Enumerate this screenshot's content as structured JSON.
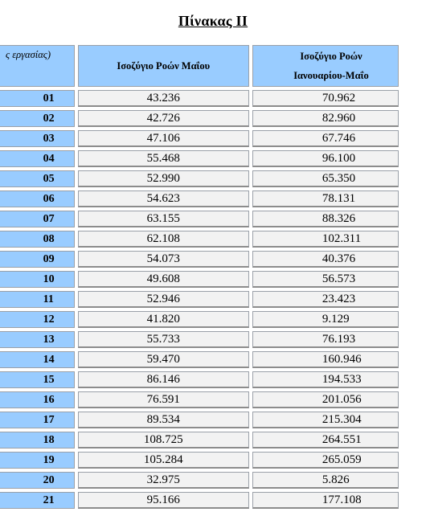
{
  "title": "Πίνακας ΙΙ",
  "headers": {
    "col0": "ς εργασίας)",
    "col1": "Ισοζύγιο Ροών Μαΐου",
    "col2_line1": "Ισοζύγιο Ροών",
    "col2_line2": "Ιανουαρίου-Μαΐο"
  },
  "rows": [
    {
      "code": "01",
      "may": "43.236",
      "jan_may": "70.962"
    },
    {
      "code": "02",
      "may": "42.726",
      "jan_may": "82.960"
    },
    {
      "code": "03",
      "may": "47.106",
      "jan_may": "67.746"
    },
    {
      "code": "04",
      "may": "55.468",
      "jan_may": "96.100"
    },
    {
      "code": "05",
      "may": "52.990",
      "jan_may": "65.350"
    },
    {
      "code": "06",
      "may": "54.623",
      "jan_may": "78.131"
    },
    {
      "code": "07",
      "may": "63.155",
      "jan_may": "88.326"
    },
    {
      "code": "08",
      "may": "62.108",
      "jan_may": "102.311"
    },
    {
      "code": "09",
      "may": "54.073",
      "jan_may": "40.376"
    },
    {
      "code": "10",
      "may": "49.608",
      "jan_may": "56.573"
    },
    {
      "code": "11",
      "may": "52.946",
      "jan_may": "23.423"
    },
    {
      "code": "12",
      "may": "41.820",
      "jan_may": "9.129"
    },
    {
      "code": "13",
      "may": "55.733",
      "jan_may": "76.193"
    },
    {
      "code": "14",
      "may": "59.470",
      "jan_may": "160.946"
    },
    {
      "code": "15",
      "may": "86.146",
      "jan_may": "194.533"
    },
    {
      "code": "16",
      "may": "76.591",
      "jan_may": "201.056"
    },
    {
      "code": "17",
      "may": "89.534",
      "jan_may": "215.304"
    },
    {
      "code": "18",
      "may": "108.725",
      "jan_may": "264.551"
    },
    {
      "code": "19",
      "may": "105.284",
      "jan_may": "265.059"
    },
    {
      "code": "20",
      "may": "32.975",
      "jan_may": "5.826"
    },
    {
      "code": "21",
      "may": "95.166",
      "jan_may": "177.108"
    }
  ]
}
